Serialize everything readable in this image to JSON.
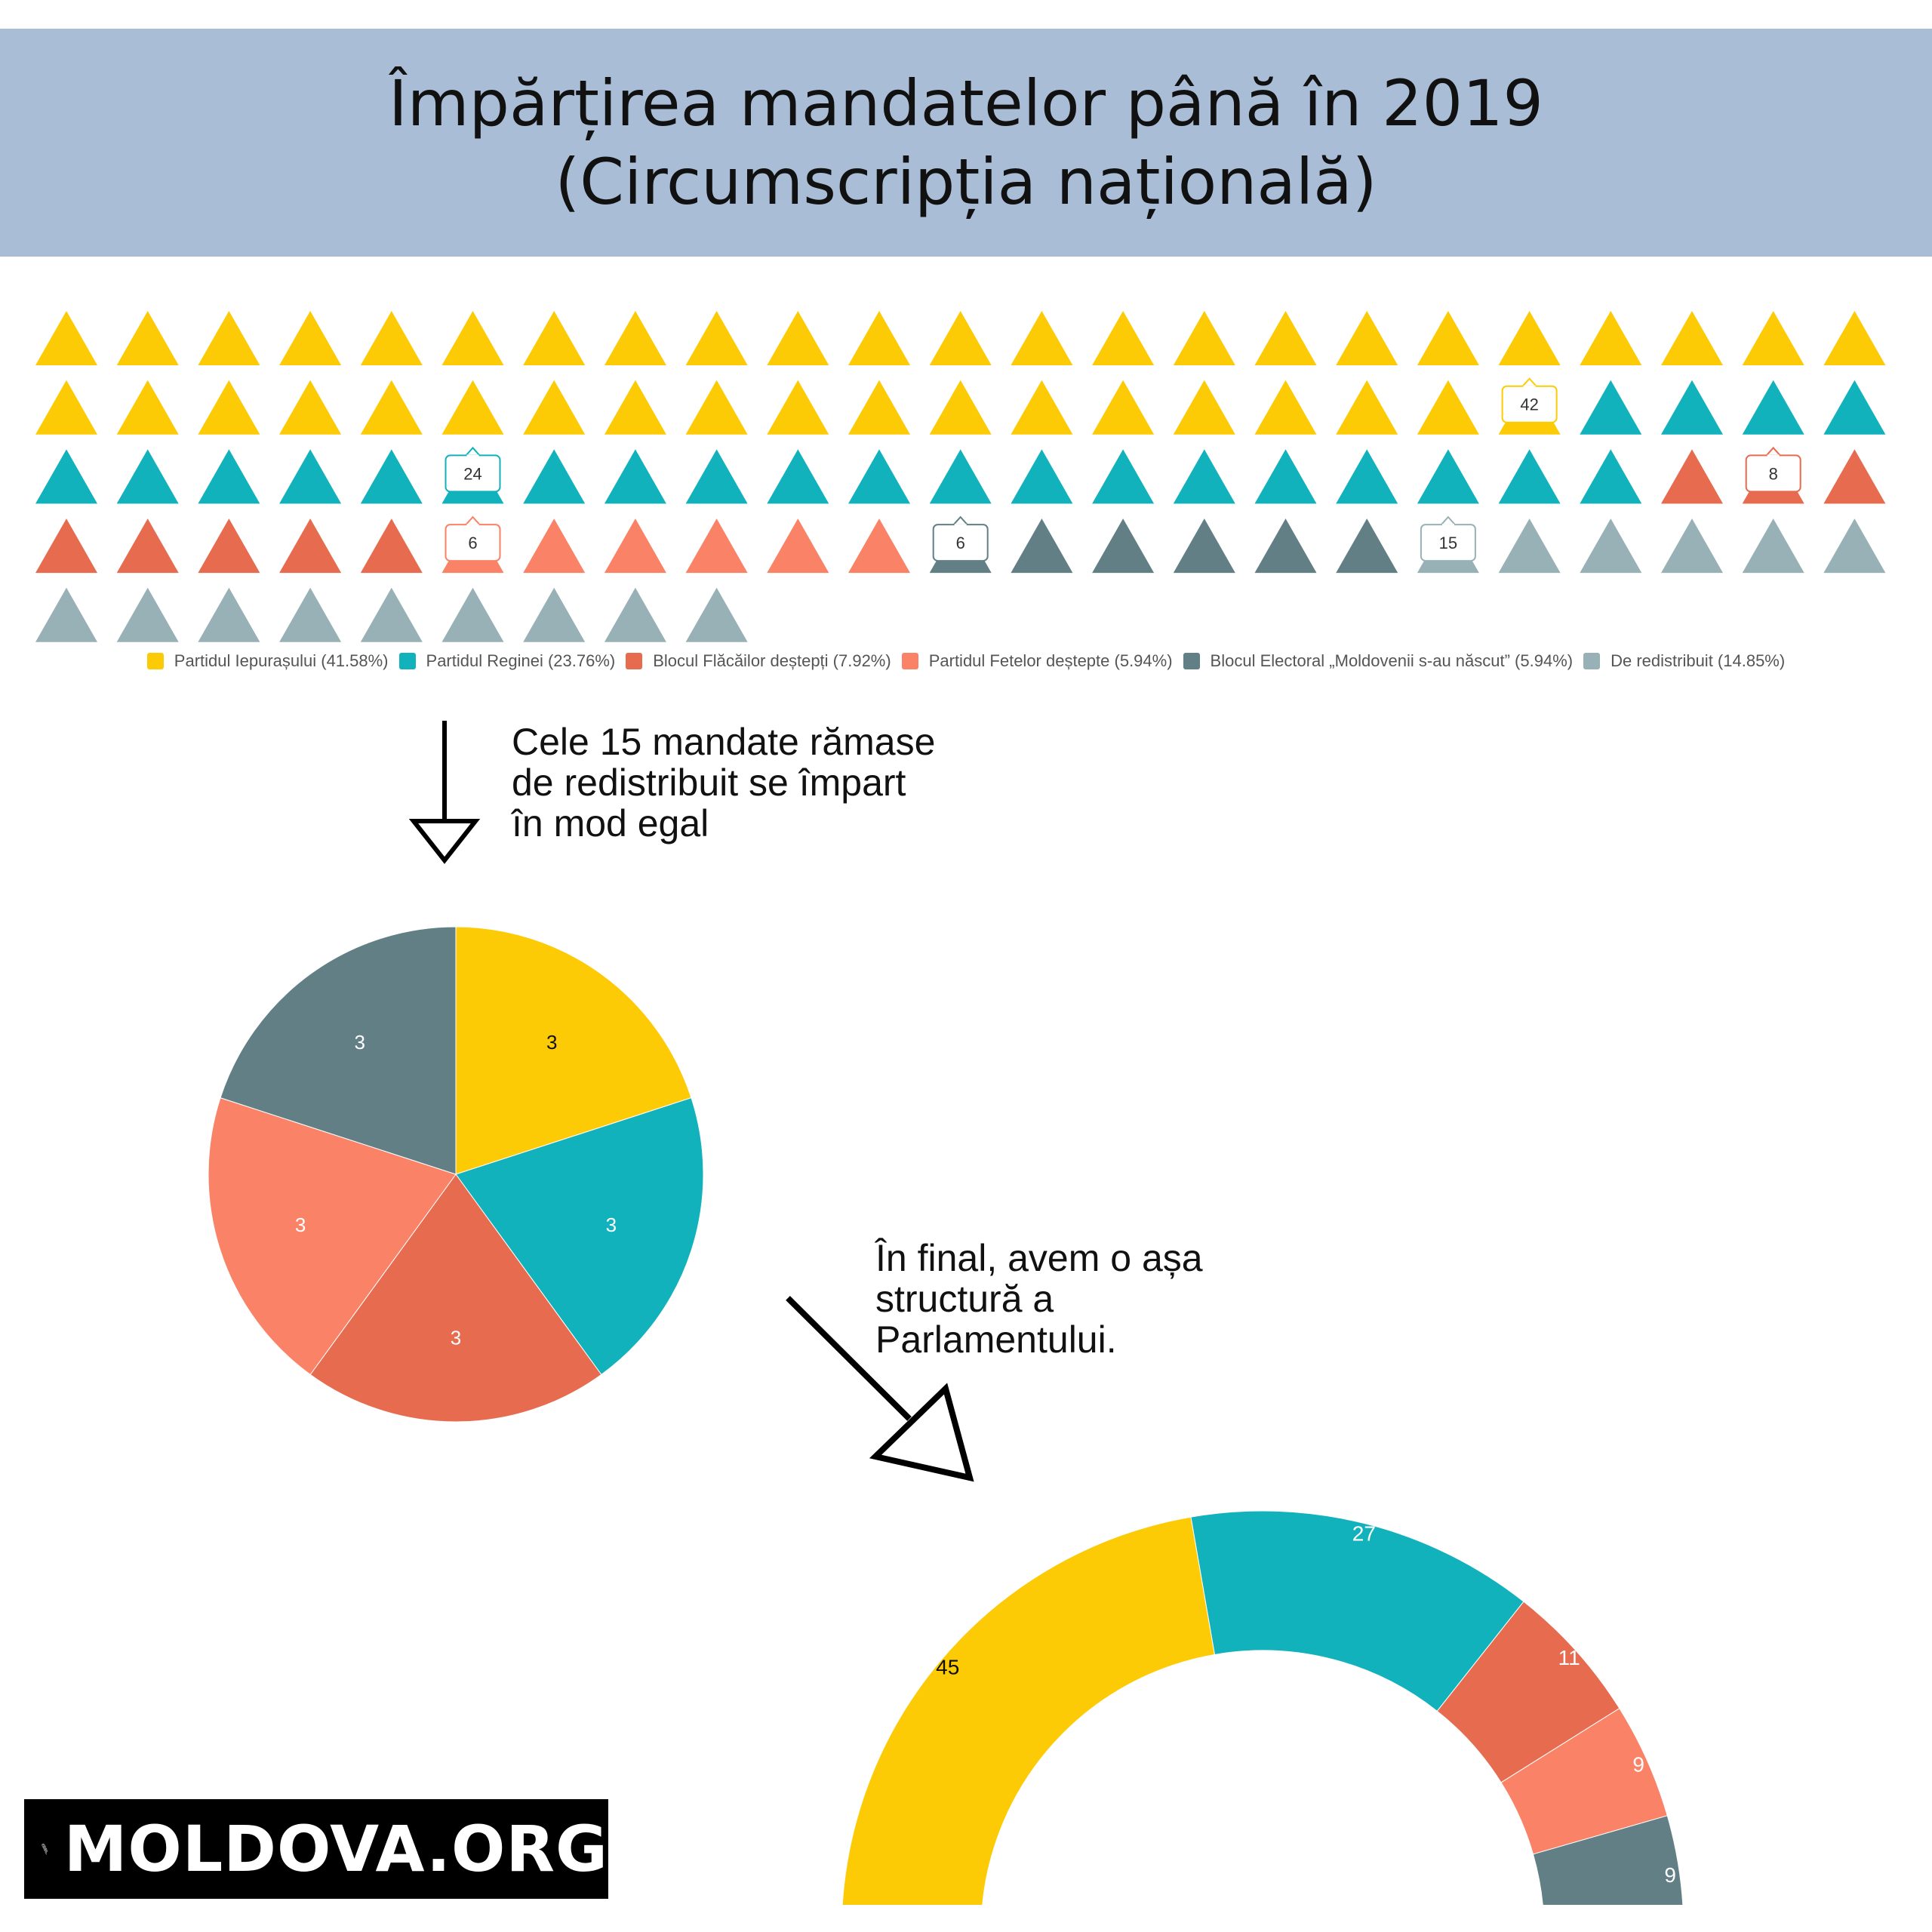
{
  "title": {
    "line1": "Împărțirea mandatelor până în 2019",
    "line2": "(Circumscripția națională)"
  },
  "colors": {
    "yellow": "#fccb05",
    "teal": "#12b2bd",
    "red": "#e76b4f",
    "salmon": "#fa8266",
    "darkgray": "#617f85",
    "lightgray": "#98b1b6"
  },
  "chart_data": [
    {
      "type": "waffle",
      "units_per_row": 23,
      "series": [
        {
          "name": "Partidul Iepurașului (41.58%)",
          "value": 42,
          "color": "#fccb05",
          "label": "42"
        },
        {
          "name": "Partidul Reginei (23.76%)",
          "value": 24,
          "color": "#12b2bd",
          "label": "24"
        },
        {
          "name": "Blocul Flăcăilor deștepți (7.92%)",
          "value": 8,
          "color": "#e76b4f",
          "label": "8"
        },
        {
          "name": "Partidul Fetelor deștepte (5.94%)",
          "value": 6,
          "color": "#fa8266",
          "label": "6"
        },
        {
          "name": "Blocul Electoral „Moldovenii s-au născut” (5.94%)",
          "value": 6,
          "color": "#617f85",
          "label": "6"
        },
        {
          "name": "De redistribuit (14.85%)",
          "value": 15,
          "color": "#98b1b6",
          "label": "15"
        }
      ]
    },
    {
      "type": "pie",
      "values": [
        3,
        3,
        3,
        3,
        3
      ],
      "labels": [
        "3",
        "3",
        "3",
        "3",
        "3"
      ],
      "colors": [
        "#fccb05",
        "#12b2bd",
        "#e76b4f",
        "#fa8266",
        "#617f85"
      ],
      "label_colors": [
        "#111111",
        "#ffffff",
        "#ffffff",
        "#ffffff",
        "#ffffff"
      ]
    },
    {
      "type": "semi-donut",
      "values": [
        45,
        27,
        11,
        9,
        9
      ],
      "labels": [
        "45",
        "27",
        "11",
        "9",
        "9"
      ],
      "colors": [
        "#fccb05",
        "#12b2bd",
        "#e76b4f",
        "#fa8266",
        "#617f85"
      ],
      "label_colors": [
        "#111111",
        "#ffffff",
        "#ffffff",
        "#ffffff",
        "#ffffff"
      ]
    }
  ],
  "annotations": {
    "note1": [
      "Cele 15 mandate rămase",
      "de redistribuit se împart",
      "în mod egal"
    ],
    "note2": [
      "În final, avem o așa",
      "structură a",
      "Parlamentului."
    ]
  },
  "logo": {
    "text": "MOLDOVA.ORG"
  }
}
